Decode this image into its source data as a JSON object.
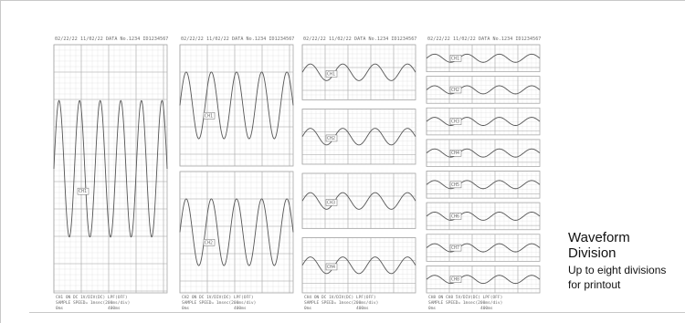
{
  "caption": {
    "title_line1": "Waveform",
    "title_line2": "Division",
    "subtitle_line1": "Up to eight divisions",
    "subtitle_line2": "for printout"
  },
  "colors": {
    "waveform": "#555555",
    "grid_minor": "#dedede",
    "grid_major": "#a9a9a9",
    "text": "#6a6a6a"
  },
  "printouts": [
    {
      "header": "02/22/22 11/02/22 DATA No.1234 ID1234567",
      "footer1": "CH1 ON  DC 1V/DIV(DC) LPF(OFF)",
      "footer2": "SAMPLE SPEED= 1msec(200ms/div)",
      "scale_left": "0ms",
      "scale_right": "400ms",
      "divisions": 1,
      "channel_labels": [
        "CH1"
      ],
      "amplitude": 0.55,
      "cycles": 5.5
    },
    {
      "header": "02/22/22 11/02/22 DATA No.1234 ID1234567",
      "footer1": "CH2 ON  DC 1V/DIV(DC) LPF(OFF)",
      "footer2": "SAMPLE SPEED= 1msec(200ms/div)",
      "scale_left": "0ms",
      "scale_right": "400ms",
      "divisions": 2,
      "channel_labels": [
        "CH1",
        "CH2"
      ],
      "amplitude": 0.55,
      "cycles": 4.5
    },
    {
      "header": "02/22/22 11/02/22 DATA No.1234 ID1234567",
      "footer1": "CH4 ON  DC 1V/DIV(DC) LPF(OFF)",
      "footer2": "SAMPLE SPEED= 1msec(200ms/div)",
      "scale_left": "0ms",
      "scale_right": "400ms",
      "divisions": 4,
      "channel_labels": [
        "CH1",
        "CH2",
        "CH3",
        "CH4"
      ],
      "amplitude": 0.3,
      "cycles": 3.5
    },
    {
      "header": "02/22/22 11/02/22 DATA No.1234 ID1234567",
      "footer1": "CH8 ON  CH8 5V/DIV(DC) LPF(OFF)",
      "footer2": "SAMPLE SPEED= 1msec(200ms/div)",
      "scale_left": "0ms",
      "scale_right": "400ms",
      "divisions": 8,
      "channel_labels": [
        "CH1",
        "CH2",
        "CH3",
        "CH4",
        "CH5",
        "CH6",
        "CH7",
        "CH8"
      ],
      "amplitude": 0.3,
      "cycles": 3.5
    }
  ]
}
